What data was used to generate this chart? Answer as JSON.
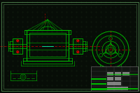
{
  "bg_color": "#070d07",
  "dot_color": "#1a3018",
  "line_color": "#00bb00",
  "dim_color": "#cc0000",
  "highlight_color": "#00ffaa",
  "white_color": "#cccccc",
  "gray_color": "#555555",
  "figsize": [
    2.0,
    1.33
  ],
  "dpi": 100,
  "border_color": "#4a7a4a",
  "title_bg": "#111411"
}
